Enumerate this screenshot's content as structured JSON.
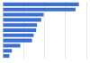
{
  "chart_data": {
    "type": "bar",
    "orientation": "horizontal",
    "categories": [
      null,
      null,
      null,
      null,
      null,
      null,
      null,
      null,
      null,
      null,
      null
    ],
    "values": [
      91,
      87,
      49,
      46,
      41,
      40,
      37,
      35,
      21,
      11,
      8
    ],
    "color": "#3b6fd4",
    "xlim": [
      0,
      100
    ],
    "xticks": [
      0,
      25,
      50,
      75,
      100
    ],
    "grid": true,
    "tick_labels": false
  }
}
